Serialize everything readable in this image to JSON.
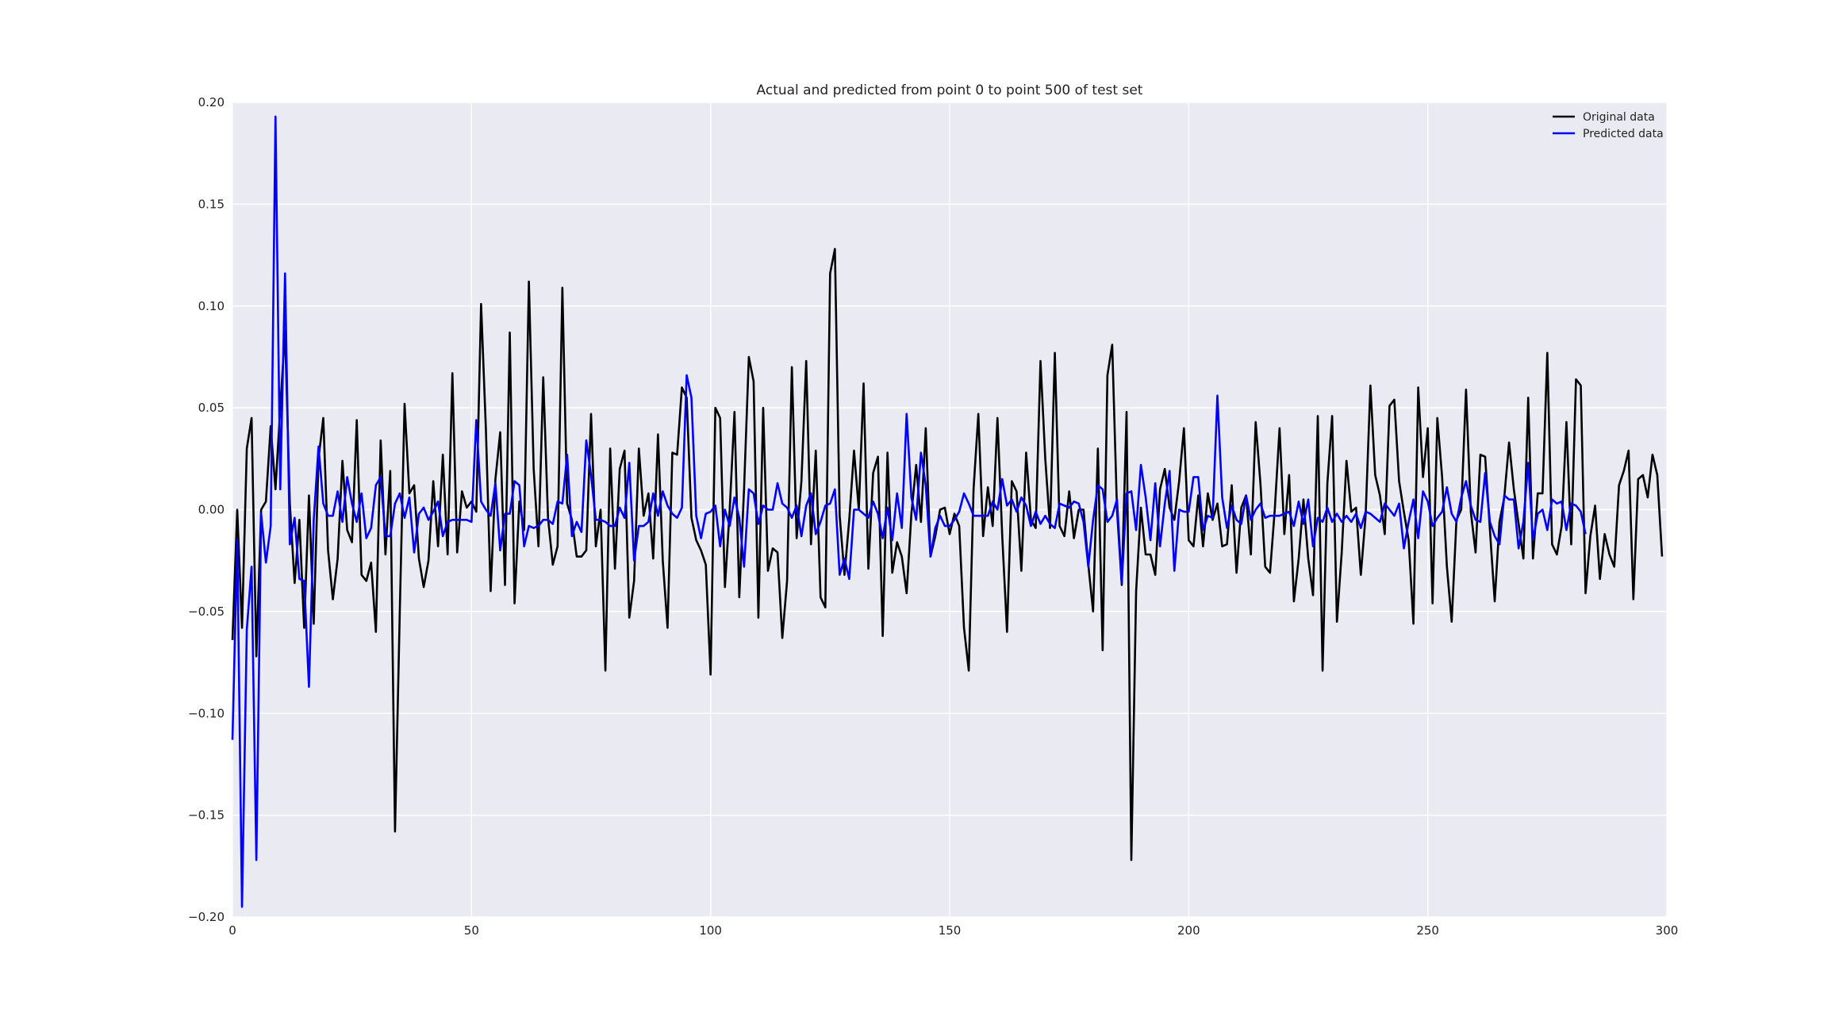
{
  "chart_data": {
    "type": "line",
    "title": "Actual and predicted from point 0 to point 500 of test set",
    "xlabel": "",
    "ylabel": "",
    "xlim": [
      0,
      300
    ],
    "ylim": [
      -0.2,
      0.2
    ],
    "x_ticks": [
      0,
      50,
      100,
      150,
      200,
      250,
      300
    ],
    "x_tick_labels": [
      "0",
      "50",
      "100",
      "150",
      "200",
      "250",
      "300"
    ],
    "y_ticks": [
      -0.2,
      -0.15,
      -0.1,
      -0.05,
      0.0,
      0.05,
      0.1,
      0.15,
      0.2
    ],
    "y_tick_labels": [
      "−0.20",
      "−0.15",
      "−0.10",
      "−0.05",
      "0.00",
      "0.05",
      "0.10",
      "0.15",
      "0.20"
    ],
    "grid": true,
    "legend_position": "top-right",
    "background_color": "#eaeaf2",
    "grid_color": "#ffffff",
    "series": [
      {
        "name": "Original data",
        "color": "#000000",
        "x_start": 0,
        "x_step": 1,
        "values": [
          -0.064,
          0.0,
          -0.058,
          0.03,
          0.045,
          -0.072,
          0.0,
          0.004,
          0.041,
          0.01,
          0.05,
          0.088,
          0.003,
          -0.036,
          -0.005,
          -0.058,
          0.007,
          -0.056,
          0.025,
          0.045,
          -0.02,
          -0.044,
          -0.024,
          0.024,
          -0.01,
          -0.016,
          0.044,
          -0.032,
          -0.035,
          -0.026,
          -0.06,
          0.034,
          -0.022,
          0.019,
          -0.158,
          -0.05,
          0.052,
          0.008,
          0.012,
          -0.024,
          -0.038,
          -0.025,
          0.014,
          -0.018,
          0.027,
          -0.022,
          0.067,
          -0.021,
          0.009,
          0.001,
          0.004,
          -0.001,
          0.101,
          0.04,
          -0.04,
          0.015,
          0.038,
          -0.037,
          0.087,
          -0.046,
          0.004,
          -0.01,
          0.112,
          0.02,
          -0.018,
          0.065,
          -0.004,
          -0.027,
          -0.018,
          0.109,
          0.003,
          -0.005,
          -0.023,
          -0.023,
          -0.02,
          0.047,
          -0.018,
          0.0,
          -0.079,
          0.03,
          -0.029,
          0.02,
          0.029,
          -0.053,
          -0.035,
          0.03,
          -0.003,
          0.008,
          -0.024,
          0.037,
          -0.025,
          -0.058,
          0.028,
          0.027,
          0.06,
          0.055,
          -0.004,
          -0.015,
          -0.02,
          -0.027,
          -0.081,
          0.05,
          0.045,
          -0.038,
          0.0,
          0.048,
          -0.043,
          0.01,
          0.075,
          0.063,
          -0.053,
          0.05,
          -0.03,
          -0.019,
          -0.021,
          -0.063,
          -0.035,
          0.07,
          -0.014,
          0.014,
          0.073,
          -0.017,
          0.029,
          -0.043,
          -0.048,
          0.116,
          0.128,
          -0.003,
          -0.032,
          -0.005,
          0.029,
          0.0,
          0.062,
          -0.029,
          0.018,
          0.026,
          -0.062,
          0.028,
          -0.031,
          -0.016,
          -0.023,
          -0.041,
          -0.002,
          0.022,
          -0.006,
          0.04,
          -0.023,
          -0.013,
          0.0,
          0.001,
          -0.012,
          -0.002,
          -0.008,
          -0.058,
          -0.079,
          0.01,
          0.047,
          -0.013,
          0.011,
          -0.008,
          0.045,
          -0.013,
          -0.06,
          0.014,
          0.009,
          -0.03,
          0.028,
          -0.005,
          -0.009,
          0.073,
          0.025,
          -0.009,
          0.077,
          -0.008,
          -0.013,
          0.009,
          -0.014,
          0.0,
          0.0,
          -0.027,
          -0.05,
          0.03,
          -0.069,
          0.066,
          0.081,
          0.0,
          -0.037,
          0.048,
          -0.172,
          -0.04,
          0.001,
          -0.022,
          -0.022,
          -0.032,
          0.01,
          0.02,
          0.001,
          -0.005,
          0.014,
          0.04,
          -0.015,
          -0.018,
          0.007,
          -0.018,
          0.008,
          -0.005,
          0.003,
          -0.018,
          -0.017,
          0.012,
          -0.031,
          0.001,
          0.007,
          -0.022,
          0.043,
          0.013,
          -0.028,
          -0.031,
          0.0,
          0.04,
          -0.012,
          0.017,
          -0.045,
          -0.024,
          0.005,
          -0.024,
          -0.042,
          0.046,
          -0.079,
          0.013,
          0.046,
          -0.055,
          -0.021,
          0.024,
          -0.001,
          0.001,
          -0.032,
          -0.003,
          0.061,
          0.017,
          0.007,
          -0.012,
          0.051,
          0.054,
          0.014,
          -0.001,
          -0.015,
          -0.056,
          0.06,
          0.016,
          0.04,
          -0.046,
          0.045,
          0.016,
          -0.028,
          -0.055,
          -0.005,
          0.0,
          0.059,
          -0.001,
          -0.021,
          0.027,
          0.026,
          -0.01,
          -0.045,
          -0.006,
          0.006,
          0.033,
          0.01,
          -0.007,
          -0.024,
          0.055,
          -0.024,
          0.008,
          0.008,
          0.077,
          -0.017,
          -0.022,
          -0.008,
          0.043,
          -0.017,
          0.064,
          0.061,
          -0.041,
          -0.013,
          0.002,
          -0.034,
          -0.012,
          -0.022,
          -0.028,
          0.012,
          0.019,
          0.029,
          -0.044,
          0.015,
          0.017,
          0.006,
          0.027,
          0.017,
          -0.023
        ]
      },
      {
        "name": "Predicted data",
        "color": "#0000ff",
        "x_start": 0,
        "x_step": 1,
        "values": [
          -0.113,
          -0.015,
          -0.195,
          -0.059,
          -0.028,
          -0.172,
          -0.002,
          -0.026,
          -0.008,
          0.193,
          0.01,
          0.116,
          -0.017,
          -0.004,
          -0.034,
          -0.035,
          -0.087,
          -0.005,
          0.031,
          0.003,
          -0.003,
          -0.003,
          0.009,
          -0.006,
          0.016,
          0.003,
          -0.006,
          0.008,
          -0.014,
          -0.009,
          0.012,
          0.016,
          -0.013,
          -0.013,
          0.003,
          0.008,
          -0.004,
          0.006,
          -0.021,
          -0.002,
          0.001,
          -0.005,
          -0.001,
          0.004,
          -0.013,
          -0.006,
          -0.005,
          -0.005,
          -0.005,
          -0.005,
          -0.006,
          0.044,
          0.004,
          0.0,
          -0.003,
          0.013,
          -0.02,
          -0.002,
          -0.002,
          0.014,
          0.012,
          -0.018,
          -0.008,
          -0.009,
          -0.008,
          -0.005,
          -0.005,
          -0.007,
          0.004,
          0.003,
          0.027,
          -0.013,
          -0.006,
          -0.011,
          0.034,
          0.017,
          -0.005,
          -0.005,
          -0.006,
          -0.008,
          -0.008,
          0.001,
          -0.004,
          0.023,
          -0.025,
          -0.008,
          -0.008,
          -0.006,
          0.008,
          -0.003,
          0.009,
          0.002,
          -0.002,
          -0.004,
          0.001,
          0.066,
          0.055,
          -0.003,
          -0.014,
          -0.002,
          -0.001,
          0.002,
          -0.018,
          0.0,
          -0.008,
          0.006,
          -0.004,
          -0.028,
          0.01,
          0.008,
          -0.007,
          0.002,
          0.0,
          0.0,
          0.013,
          0.003,
          0.001,
          -0.004,
          0.002,
          -0.013,
          0.002,
          0.008,
          -0.012,
          -0.006,
          0.002,
          0.003,
          0.01,
          -0.032,
          -0.024,
          -0.034,
          0.0,
          0.0,
          -0.002,
          -0.004,
          0.004,
          -0.002,
          -0.014,
          0.001,
          -0.015,
          0.008,
          -0.009,
          0.047,
          0.006,
          -0.005,
          0.028,
          0.012,
          -0.023,
          -0.009,
          -0.003,
          -0.008,
          -0.008,
          -0.005,
          -0.001,
          0.008,
          0.003,
          -0.003,
          -0.003,
          -0.003,
          -0.003,
          0.004,
          0.0,
          0.015,
          0.002,
          0.005,
          -0.001,
          0.006,
          0.002,
          -0.008,
          -0.001,
          -0.007,
          -0.003,
          -0.007,
          -0.009,
          0.003,
          0.002,
          0.001,
          0.004,
          0.003,
          -0.006,
          -0.028,
          -0.005,
          0.012,
          0.01,
          -0.006,
          -0.003,
          0.005,
          -0.036,
          0.008,
          0.009,
          -0.01,
          0.022,
          0.006,
          -0.015,
          0.013,
          -0.018,
          0.003,
          0.019,
          -0.03,
          0.0,
          -0.001,
          -0.001,
          0.016,
          0.016,
          -0.01,
          -0.003,
          -0.004,
          0.056,
          0.006,
          -0.009,
          0.002,
          -0.005,
          -0.007,
          0.007,
          -0.005,
          0.0,
          0.003,
          -0.004,
          -0.003,
          -0.003,
          -0.003,
          -0.002,
          -0.001,
          -0.008,
          0.004,
          -0.007,
          0.005,
          -0.018,
          -0.004,
          -0.006,
          0.001,
          -0.006,
          -0.002,
          -0.006,
          -0.003,
          -0.006,
          -0.002,
          -0.009,
          -0.001,
          -0.002,
          -0.004,
          -0.006,
          0.003,
          0.0,
          -0.003,
          0.003,
          -0.019,
          -0.006,
          0.005,
          -0.014,
          0.009,
          0.004,
          -0.008,
          -0.004,
          -0.001,
          0.011,
          -0.002,
          -0.006,
          0.006,
          0.014,
          0.002,
          -0.005,
          -0.006,
          0.018,
          -0.006,
          -0.013,
          -0.017,
          0.007,
          0.005,
          0.005,
          -0.019,
          -0.006,
          0.023,
          -0.015,
          -0.002,
          0.0,
          -0.01,
          0.005,
          0.003,
          0.004,
          -0.01,
          0.003,
          0.002,
          -0.001,
          -0.012
        ]
      }
    ]
  }
}
